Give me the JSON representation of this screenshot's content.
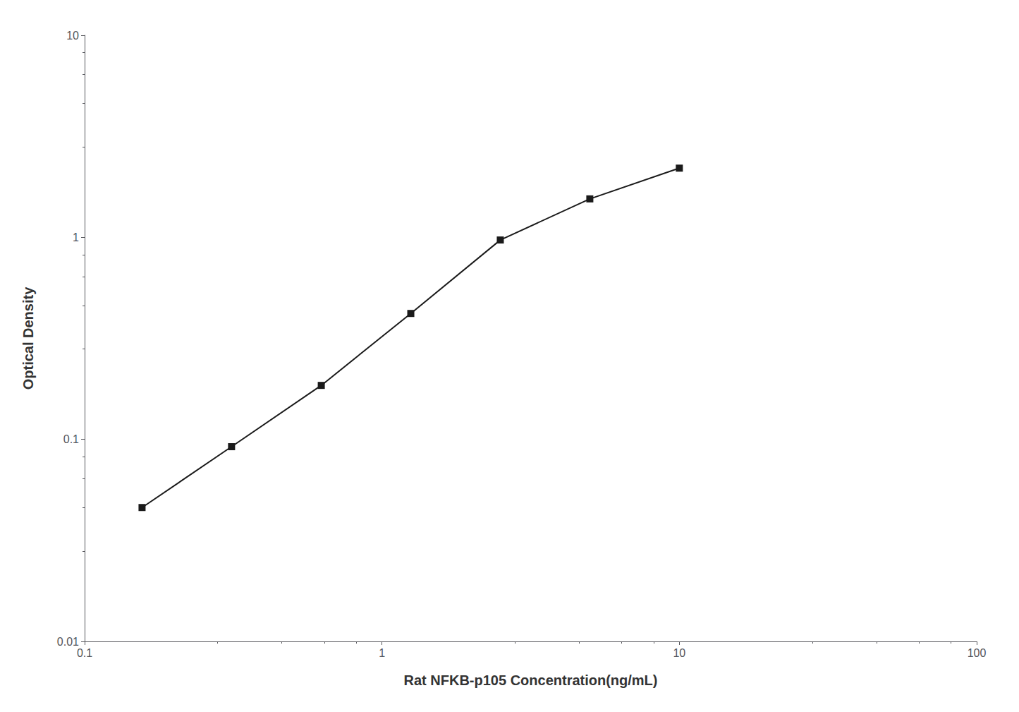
{
  "chart_data": {
    "type": "line",
    "x": [
      0.156,
      0.312,
      0.625,
      1.25,
      2.5,
      5.0,
      10.0
    ],
    "values": [
      0.046,
      0.092,
      0.185,
      0.42,
      0.97,
      1.55,
      2.2
    ],
    "xlabel": "Rat NFKB-p105 Concentration(ng/mL)",
    "ylabel": "Optical Density",
    "xlim": [
      0.1,
      100
    ],
    "ylim": [
      0.01,
      10
    ],
    "xticks": [
      0.1,
      1,
      10,
      100
    ],
    "yticks": [
      0.01,
      0.1,
      1,
      10
    ],
    "log": true,
    "color": "#1a1a1a",
    "marker": "square",
    "grid": false
  }
}
